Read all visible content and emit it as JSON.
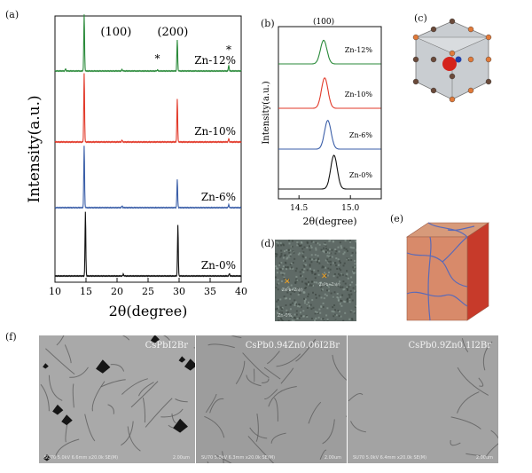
{
  "panels": {
    "a": "(a)",
    "b": "(b)",
    "c": "(c)",
    "d": "(d)",
    "e": "(e)",
    "f": "(f)"
  },
  "chart_data": [
    {
      "id": "a",
      "type": "line",
      "xlabel": "2θ(degree)",
      "ylabel": "Intensity(a.u.)",
      "xlim": [
        10,
        40
      ],
      "xticks": [
        "10",
        "15",
        "20",
        "25",
        "30",
        "35",
        "40"
      ],
      "series": [
        {
          "name": "Zn-12%",
          "color": "#2a8a3a",
          "peaks": [
            [
              11.7,
              0.04
            ],
            [
              14.7,
              1.0
            ],
            [
              20.8,
              0.03
            ],
            [
              29.7,
              0.55
            ],
            [
              26.5,
              0.02
            ],
            [
              38.0,
              0.1
            ]
          ]
        },
        {
          "name": "Zn-10%",
          "color": "#e23a2a",
          "peaks": [
            [
              14.7,
              1.0
            ],
            [
              20.8,
              0.03
            ],
            [
              29.7,
              0.62
            ],
            [
              38.0,
              0.05
            ]
          ]
        },
        {
          "name": "Zn-6%",
          "color": "#3a5ea8",
          "peaks": [
            [
              14.7,
              1.0
            ],
            [
              20.8,
              0.03
            ],
            [
              29.7,
              0.45
            ],
            [
              38.0,
              0.05
            ]
          ]
        },
        {
          "name": "Zn-0%",
          "color": "#111111",
          "peaks": [
            [
              14.9,
              1.0
            ],
            [
              21.0,
              0.03
            ],
            [
              29.8,
              0.8
            ],
            [
              38.1,
              0.04
            ]
          ]
        }
      ],
      "annotations": [
        "(100)",
        "(200)",
        "*",
        "*"
      ]
    },
    {
      "id": "b",
      "type": "line",
      "xlabel": "2θ(degree)",
      "ylabel": "Intensity(a.u.)",
      "xlim": [
        14.3,
        15.3
      ],
      "xticks": [
        "14.5",
        "15.0"
      ],
      "series": [
        {
          "name": "Zn-12%",
          "color": "#2a8a3a",
          "center": 14.74,
          "height": 0.7
        },
        {
          "name": "Zn-10%",
          "color": "#e23a2a",
          "center": 14.75,
          "height": 0.9
        },
        {
          "name": "Zn-6%",
          "color": "#3a5ea8",
          "center": 14.78,
          "height": 0.85
        },
        {
          "name": "Zn-0%",
          "color": "#111111",
          "center": 14.84,
          "height": 1.0
        }
      ],
      "annotations": [
        "(100)"
      ]
    }
  ],
  "panel_d": {
    "label": "Zn-0%",
    "cross1": "ZnPb+Zn(r)",
    "cross2": "ZnPb+Zn(r)"
  },
  "panel_f": [
    {
      "title": "CsPbI2Br",
      "footer": "SU70 5.0kV 6.6mm x20.0k SE(M)",
      "scale": "2.00um"
    },
    {
      "title": "CsPb0.94Zn0.06I2Br",
      "footer": "SU70 5.0kV 6.3mm x20.0k SE(M)",
      "scale": "2.00um"
    },
    {
      "title": "CsPb0.9Zn0.1I2Br",
      "footer": "SU70 5.0kV 6.4mm x20.0k SE(M)",
      "scale": "2.00um"
    }
  ]
}
